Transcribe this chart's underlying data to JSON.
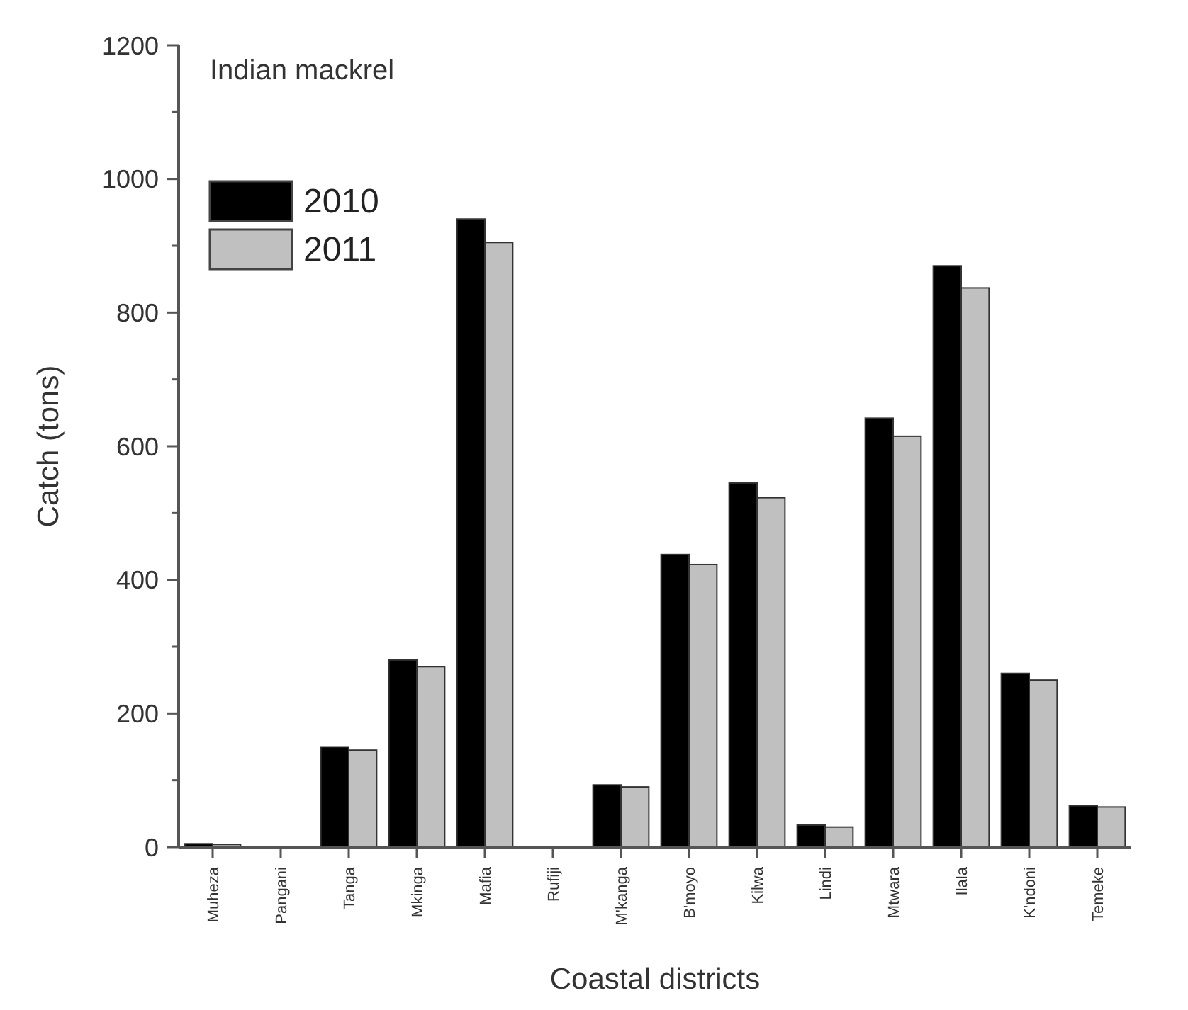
{
  "chart_data": {
    "type": "bar",
    "title": "Indian mackrel",
    "xlabel": "Coastal districts",
    "ylabel": "Catch (tons)",
    "categories": [
      "Muheza",
      "Pangani",
      "Tanga",
      "Mkinga",
      "Mafia",
      "Rufiji",
      "M'kanga",
      "B'moyo",
      "Kilwa",
      "Lindi",
      "Mtwara",
      "Ilala",
      "K'ndoni",
      "Temeke"
    ],
    "series": [
      {
        "name": "2010",
        "color": "#000000",
        "values": [
          5,
          0,
          150,
          280,
          940,
          0,
          93,
          438,
          545,
          33,
          642,
          870,
          260,
          62
        ]
      },
      {
        "name": "2011",
        "color": "#c0c0c0",
        "values": [
          4,
          0,
          145,
          270,
          905,
          0,
          90,
          423,
          523,
          30,
          615,
          837,
          250,
          60
        ]
      }
    ],
    "ylim": [
      0,
      1200
    ],
    "yticks": [
      0,
      {
        "value": 100,
        "label": null
      },
      200,
      {
        "value": 300,
        "label": null
      },
      400,
      {
        "value": 500,
        "label": null
      },
      600,
      {
        "value": 700,
        "label": null
      },
      800,
      {
        "value": 900,
        "label": null
      },
      1000,
      {
        "value": 1100,
        "label": null
      },
      1200
    ],
    "grid": false,
    "legend": "top left"
  }
}
